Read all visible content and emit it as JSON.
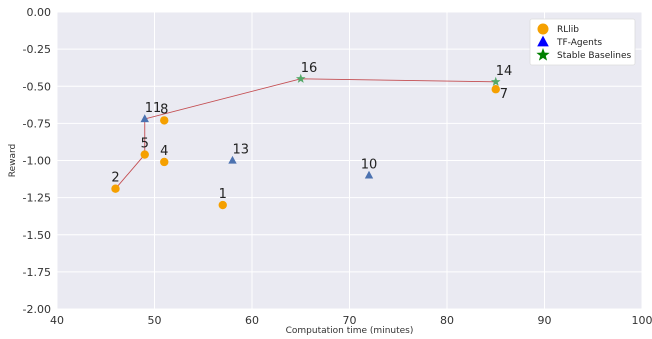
{
  "chart_data": {
    "type": "scatter",
    "title": "",
    "xlabel": "Computation time (minutes)",
    "ylabel": "Reward",
    "xlim": [
      40,
      100
    ],
    "ylim": [
      -2.0,
      0.0
    ],
    "x_ticks": [
      "40",
      "50",
      "60",
      "70",
      "80",
      "90",
      "100"
    ],
    "y_ticks": [
      "0.00",
      "-0.25",
      "-0.50",
      "-0.75",
      "-1.00",
      "-1.25",
      "-1.50",
      "-1.75",
      "-2.00"
    ],
    "grid": true,
    "legend_position": "top-right",
    "series": [
      {
        "name": "RLlib",
        "marker": "circle",
        "color": "#f5a000",
        "points": [
          {
            "label": "1",
            "x": 57,
            "y": -1.3
          },
          {
            "label": "2",
            "x": 46,
            "y": -1.19
          },
          {
            "label": "4",
            "x": 51,
            "y": -1.01
          },
          {
            "label": "5",
            "x": 49,
            "y": -0.96
          },
          {
            "label": "7",
            "x": 85,
            "y": -0.52
          },
          {
            "label": "8",
            "x": 51,
            "y": -0.73
          }
        ]
      },
      {
        "name": "TF-Agents",
        "marker": "triangle",
        "color": "#4c72b0",
        "legend_color": "#0000ff",
        "points": [
          {
            "label": "10",
            "x": 72,
            "y": -1.1
          },
          {
            "label": "11",
            "x": 49,
            "y": -0.72
          },
          {
            "label": "13",
            "x": 58,
            "y": -1.0
          }
        ]
      },
      {
        "name": "Stable Baselines",
        "marker": "star",
        "color": "#55a868",
        "legend_color": "#008000",
        "points": [
          {
            "label": "14",
            "x": 85,
            "y": -0.47
          },
          {
            "label": "16",
            "x": 65,
            "y": -0.45
          }
        ]
      }
    ],
    "pareto_front": {
      "color": "#c44e52",
      "points": [
        [
          46,
          -1.19
        ],
        [
          49,
          -0.96
        ],
        [
          49,
          -0.72
        ],
        [
          65,
          -0.45
        ],
        [
          85,
          -0.47
        ]
      ]
    }
  }
}
